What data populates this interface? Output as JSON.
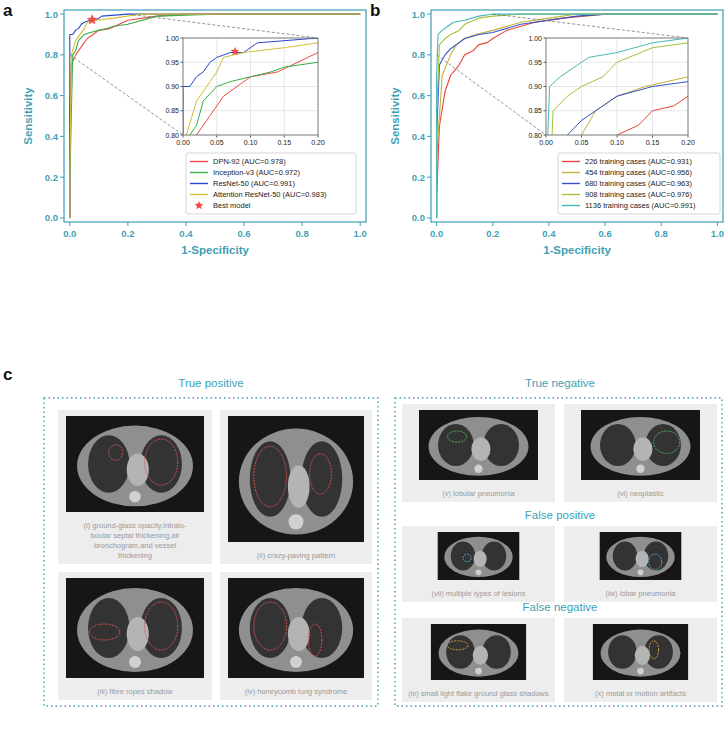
{
  "chart_data": [
    {
      "panel": "a",
      "type": "line",
      "xlabel": "1-Specificity",
      "ylabel": "Sensitivity",
      "xlim": [
        -0.02,
        1.02
      ],
      "ylim": [
        -0.02,
        1.02
      ],
      "xticks": [
        {
          "value": 0,
          "label": "0.0"
        },
        0.2,
        0.4,
        0.6,
        0.8,
        {
          "value": 1,
          "label": "1.0"
        }
      ],
      "yticks": [
        {
          "value": 0,
          "label": "0.0"
        },
        0.2,
        0.4,
        0.6,
        0.8,
        {
          "value": 1,
          "label": "1.0"
        }
      ],
      "grid": false,
      "legend": "lower right",
      "inset": {
        "xlim": [
          0,
          0.2
        ],
        "ylim": [
          0.8,
          1.0
        ],
        "xticks": [
          {
            "value": 0,
            "label": "0.00"
          },
          0.05,
          {
            "value": 0.1,
            "label": "0.10"
          },
          0.15,
          {
            "value": 0.2,
            "label": "0.20"
          }
        ],
        "yticks": [
          {
            "value": 0.8,
            "label": "0.80"
          },
          0.85,
          {
            "value": 0.9,
            "label": "0.90"
          },
          0.95,
          {
            "value": 1,
            "label": "1.00"
          }
        ],
        "grid": true
      },
      "series": [
        {
          "name": "DPN-92 (AUC=0.978)",
          "color": "#ef4b44",
          "x": [
            0,
            0,
            0.005,
            0.02,
            0.04,
            0.06,
            0.08,
            0.1,
            0.14,
            0.17,
            0.2,
            0.3,
            0.4,
            1
          ],
          "values": [
            0,
            0.52,
            0.75,
            0.8,
            0.84,
            0.88,
            0.9,
            0.92,
            0.93,
            0.95,
            0.97,
            0.99,
            1,
            1
          ]
        },
        {
          "name": "Inception-v3 (AUC=0.972)",
          "color": "#3aad4a",
          "x": [
            0,
            0,
            0.01,
            0.02,
            0.03,
            0.05,
            0.07,
            0.1,
            0.13,
            0.15,
            0.2,
            0.3,
            0.5,
            1
          ],
          "values": [
            0,
            0.18,
            0.8,
            0.82,
            0.87,
            0.9,
            0.91,
            0.92,
            0.93,
            0.94,
            0.95,
            0.99,
            1,
            1
          ]
        },
        {
          "name": "ResNet-50 (AUC=0.991)",
          "color": "#2b47c8",
          "x": [
            0,
            0,
            0,
            0.01,
            0.02,
            0.03,
            0.04,
            0.05,
            0.07,
            0.09,
            0.11,
            0.2,
            1
          ],
          "values": [
            0,
            0.82,
            0.9,
            0.9,
            0.92,
            0.93,
            0.95,
            0.96,
            0.97,
            0.97,
            0.99,
            1,
            1
          ]
        },
        {
          "name": "Attention ResNet-50 (AUC=0.983)",
          "color": "#d1c035",
          "x": [
            0,
            0,
            0.005,
            0.02,
            0.04,
            0.05,
            0.06,
            0.09,
            0.15,
            0.25,
            1
          ],
          "values": [
            0,
            0.18,
            0.8,
            0.87,
            0.91,
            0.93,
            0.96,
            0.97,
            0.98,
            1,
            1
          ]
        },
        {
          "name": "Best model",
          "type": "scatter",
          "marker": "star",
          "color": "#ef4b44",
          "x": [
            0.077
          ],
          "values": [
            0.972
          ]
        }
      ]
    },
    {
      "panel": "b",
      "type": "line",
      "xlabel": "1-Specificity",
      "ylabel": "Sensitivity",
      "xlim": [
        -0.02,
        1.02
      ],
      "ylim": [
        -0.02,
        1.02
      ],
      "xticks": [
        {
          "value": 0,
          "label": "0.0"
        },
        0.2,
        0.4,
        0.6,
        0.8,
        {
          "value": 1,
          "label": "1.0"
        }
      ],
      "yticks": [
        {
          "value": 0,
          "label": "0.0"
        },
        0.2,
        0.4,
        0.6,
        0.8,
        {
          "value": 1,
          "label": "1.0"
        }
      ],
      "grid": false,
      "legend": "lower right",
      "inset": {
        "xlim": [
          0,
          0.2
        ],
        "ylim": [
          0.8,
          1.0
        ],
        "xticks": [
          {
            "value": 0,
            "label": "0.00"
          },
          0.05,
          {
            "value": 0.1,
            "label": "0.10"
          },
          0.15,
          {
            "value": 0.2,
            "label": "0.20"
          }
        ],
        "yticks": [
          {
            "value": 0.8,
            "label": "0.80"
          },
          0.85,
          {
            "value": 0.9,
            "label": "0.90"
          },
          0.95,
          {
            "value": 1,
            "label": "1.00"
          }
        ],
        "grid": true
      },
      "series": [
        {
          "name": "226 training cases (AUC=0.931)",
          "color": "#e8443a",
          "x": [
            0,
            0,
            0.01,
            0.03,
            0.05,
            0.08,
            0.1,
            0.13,
            0.15,
            0.18,
            0.2,
            0.25,
            0.35,
            0.45,
            0.6,
            1
          ],
          "values": [
            0,
            0.1,
            0.45,
            0.62,
            0.7,
            0.75,
            0.8,
            0.82,
            0.85,
            0.86,
            0.88,
            0.92,
            0.96,
            0.98,
            1,
            1
          ]
        },
        {
          "name": "454 training cases (AUC=0.956)",
          "color": "#c2b13a",
          "x": [
            0,
            0,
            0.02,
            0.05,
            0.07,
            0.1,
            0.14,
            0.2,
            0.3,
            0.4,
            0.5,
            1
          ],
          "values": [
            0,
            0.3,
            0.7,
            0.8,
            0.85,
            0.88,
            0.9,
            0.92,
            0.96,
            0.98,
            1,
            1
          ]
        },
        {
          "name": "680 training cases (AUC=0.963)",
          "color": "#3553c6",
          "x": [
            0,
            0,
            0.01,
            0.03,
            0.05,
            0.08,
            0.1,
            0.15,
            0.2,
            0.3,
            0.5,
            0.6,
            1
          ],
          "values": [
            0,
            0.4,
            0.75,
            0.8,
            0.83,
            0.86,
            0.88,
            0.9,
            0.91,
            0.95,
            0.99,
            1,
            1
          ]
        },
        {
          "name": "908 training cases (AUC=0.976)",
          "color": "#a6bf3c",
          "x": [
            0,
            0,
            0.01,
            0.03,
            0.05,
            0.08,
            0.1,
            0.15,
            0.2,
            0.3,
            1
          ],
          "values": [
            0,
            0.5,
            0.85,
            0.88,
            0.9,
            0.92,
            0.95,
            0.98,
            0.99,
            1,
            1
          ]
        },
        {
          "name": "1136 training cases (AUC=0.991)",
          "color": "#45b8b8",
          "x": [
            0,
            0,
            0.005,
            0.02,
            0.04,
            0.06,
            0.1,
            0.15,
            0.2,
            1
          ],
          "values": [
            0,
            0.7,
            0.9,
            0.92,
            0.94,
            0.96,
            0.97,
            0.99,
            1,
            1
          ]
        }
      ]
    }
  ],
  "panel_c": {
    "label": "c",
    "groups": [
      {
        "title": "True positive",
        "items": [
          {
            "caption": [
              "(i) ground-glass opacity,Intralo-",
              "boular septal thickening,air",
              "bronchogram,and vessel",
              "thickening"
            ]
          },
          {
            "caption": [
              "(ii) crazy-paving pattern"
            ]
          },
          {
            "caption": [
              "(iii) fibre ropes shadow"
            ]
          },
          {
            "caption": [
              "(iv) honeycomb lung syndrome"
            ]
          }
        ]
      },
      {
        "title": "True negative",
        "items": [
          {
            "caption": [
              "(v) lobular pneumonia"
            ]
          },
          {
            "caption": [
              "(vi) neoplastic"
            ]
          }
        ]
      },
      {
        "title": "False positive",
        "items": [
          {
            "caption": [
              "(vii) multiple types of lesions"
            ]
          },
          {
            "caption": [
              "(iix) lobar pneumonia"
            ]
          }
        ]
      },
      {
        "title": "False negative",
        "items": [
          {
            "caption": [
              "(ix) small light flake ground glass shadows"
            ]
          },
          {
            "caption": [
              "(x) metal or motion artifacts"
            ]
          }
        ]
      }
    ]
  }
}
